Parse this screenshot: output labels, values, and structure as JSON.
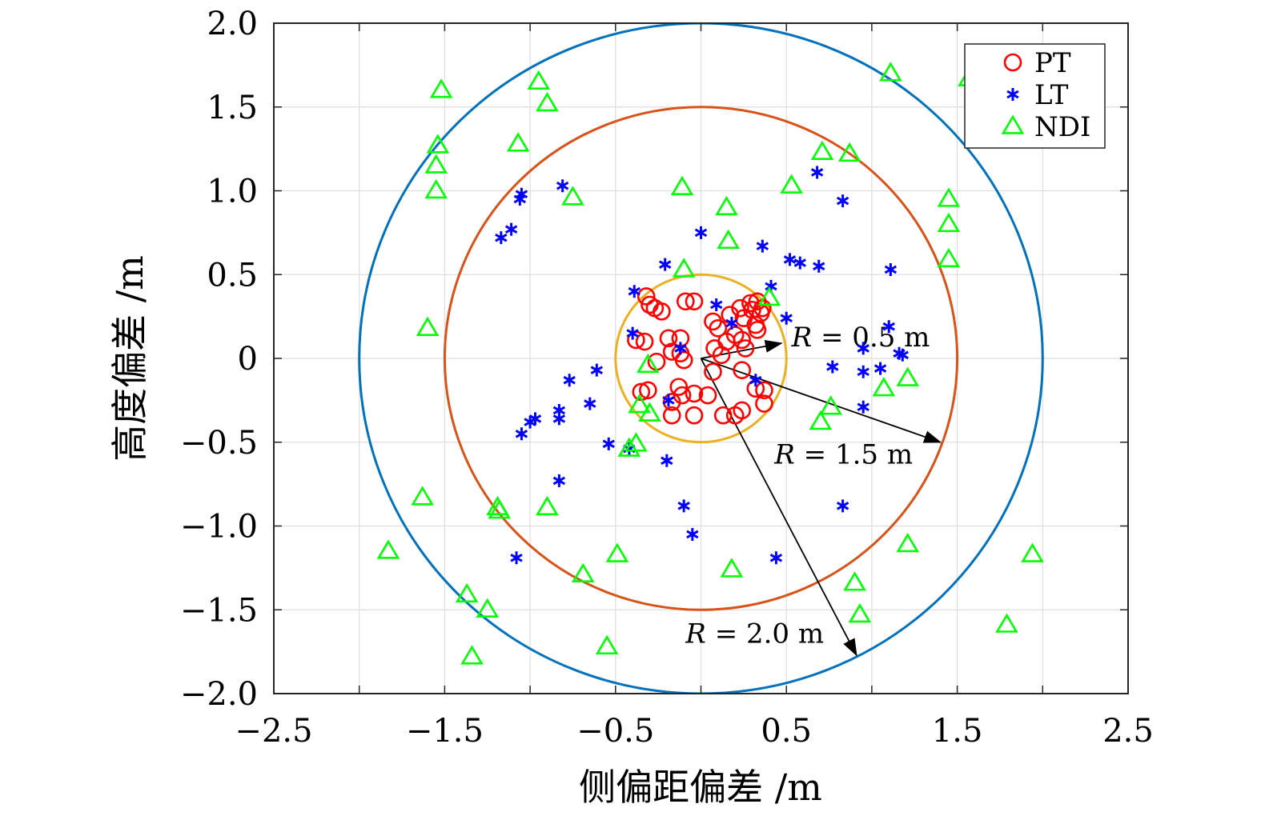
{
  "chart_data": {
    "type": "scatter",
    "xlabel": "侧偏距偏差 /m",
    "ylabel": "高度偏差 /m",
    "xlim": [
      -2.5,
      2.5
    ],
    "ylim": [
      -2.0,
      2.0
    ],
    "xticks": [
      -2.5,
      -1.5,
      -0.5,
      0.5,
      1.5,
      2.5
    ],
    "xtick_labels": [
      "−2.5",
      "−1.5",
      "−0.5",
      "0.5",
      "1.5",
      "2.5"
    ],
    "xgrid": [
      -2.5,
      -2.0,
      -1.5,
      -1.0,
      -0.5,
      0.0,
      0.5,
      1.0,
      1.5,
      2.0,
      2.5
    ],
    "yticks": [
      2.0,
      1.5,
      1.0,
      0.5,
      0.0,
      -0.5,
      -1.0,
      -1.5,
      -2.0
    ],
    "ytick_labels": [
      "2.0",
      "1.5",
      "1.0",
      "0.5",
      "0",
      "−0.5",
      "−1.0",
      "−1.5",
      "−2.0"
    ],
    "grid": true,
    "legend_position": "top-right",
    "circles": [
      {
        "r": 0.5,
        "color": "#EDB120"
      },
      {
        "r": 1.5,
        "color": "#D95319"
      },
      {
        "r": 2.0,
        "color": "#0072BD"
      }
    ],
    "annotations": [
      {
        "text_italic": "R",
        "text_rest": " = 0.5 m",
        "tail": [
          0.0,
          0.0
        ],
        "head": [
          0.47,
          0.09
        ],
        "label_at": [
          0.53,
          0.13
        ]
      },
      {
        "text_italic": "R",
        "text_rest": " = 1.5 m",
        "tail": [
          0.0,
          0.0
        ],
        "head": [
          1.4,
          -0.5
        ],
        "label_at": [
          0.43,
          -0.57
        ]
      },
      {
        "text_italic": "R",
        "text_rest": " = 2.0 m",
        "tail": [
          0.0,
          0.0
        ],
        "head": [
          0.91,
          -1.77
        ],
        "label_at": [
          -0.09,
          -1.64
        ]
      }
    ],
    "series": [
      {
        "name": "PT",
        "marker": "circle",
        "color": "#ff0000",
        "points": [
          [
            -0.32,
            0.37
          ],
          [
            -0.3,
            0.32
          ],
          [
            -0.27,
            0.3
          ],
          [
            -0.23,
            0.28
          ],
          [
            -0.09,
            0.34
          ],
          [
            0.07,
            0.22
          ],
          [
            0.1,
            0.18
          ],
          [
            0.17,
            0.26
          ],
          [
            0.23,
            0.3
          ],
          [
            0.29,
            0.33
          ],
          [
            0.33,
            0.34
          ],
          [
            0.36,
            0.3
          ],
          [
            0.3,
            0.29
          ],
          [
            0.35,
            0.27
          ],
          [
            0.25,
            0.24
          ],
          [
            0.32,
            0.2
          ],
          [
            0.33,
            0.17
          ],
          [
            0.2,
            0.14
          ],
          [
            0.15,
            0.1
          ],
          [
            0.24,
            0.11
          ],
          [
            0.08,
            0.06
          ],
          [
            0.12,
            0.02
          ],
          [
            0.26,
            0.06
          ],
          [
            0.24,
            -0.07
          ],
          [
            -0.38,
            0.11
          ],
          [
            -0.33,
            0.1
          ],
          [
            -0.19,
            0.12
          ],
          [
            -0.12,
            0.12
          ],
          [
            -0.17,
            0.04
          ],
          [
            -0.12,
            0.03
          ],
          [
            -0.1,
            -0.01
          ],
          [
            -0.26,
            -0.02
          ],
          [
            -0.35,
            -0.2
          ],
          [
            -0.31,
            -0.19
          ],
          [
            -0.13,
            -0.17
          ],
          [
            -0.17,
            -0.26
          ],
          [
            -0.11,
            -0.22
          ],
          [
            -0.04,
            -0.21
          ],
          [
            0.04,
            -0.22
          ],
          [
            -0.17,
            -0.34
          ],
          [
            -0.04,
            -0.34
          ],
          [
            0.13,
            -0.34
          ],
          [
            0.2,
            -0.34
          ],
          [
            0.24,
            -0.31
          ],
          [
            0.32,
            -0.18
          ],
          [
            0.37,
            -0.19
          ],
          [
            0.37,
            -0.27
          ],
          [
            0.07,
            -0.08
          ],
          [
            -0.04,
            0.34
          ]
        ]
      },
      {
        "name": "LT",
        "marker": "asterisk",
        "color": "#0000ff",
        "points": [
          [
            -0.81,
            1.03
          ],
          [
            -1.05,
            0.98
          ],
          [
            -1.06,
            0.95
          ],
          [
            -1.11,
            0.77
          ],
          [
            -1.17,
            0.72
          ],
          [
            -0.0,
            0.75
          ],
          [
            -0.21,
            0.56
          ],
          [
            0.36,
            0.67
          ],
          [
            0.52,
            0.59
          ],
          [
            0.58,
            0.57
          ],
          [
            0.69,
            0.55
          ],
          [
            1.11,
            0.53
          ],
          [
            0.68,
            1.11
          ],
          [
            0.83,
            0.94
          ],
          [
            0.41,
            0.43
          ],
          [
            -0.39,
            0.4
          ],
          [
            0.09,
            0.32
          ],
          [
            0.18,
            0.21
          ],
          [
            0.5,
            0.24
          ],
          [
            1.1,
            0.19
          ],
          [
            -0.4,
            0.15
          ],
          [
            1.16,
            0.03
          ],
          [
            1.18,
            0.02
          ],
          [
            0.95,
            0.06
          ],
          [
            -0.12,
            0.06
          ],
          [
            0.77,
            -0.05
          ],
          [
            0.95,
            -0.08
          ],
          [
            1.05,
            -0.06
          ],
          [
            -0.61,
            -0.07
          ],
          [
            -0.77,
            -0.13
          ],
          [
            -0.65,
            -0.27
          ],
          [
            -0.83,
            -0.31
          ],
          [
            -0.83,
            -0.36
          ],
          [
            -0.97,
            -0.36
          ],
          [
            -1.0,
            -0.38
          ],
          [
            -1.05,
            -0.45
          ],
          [
            -0.54,
            -0.51
          ],
          [
            -0.42,
            -0.54
          ],
          [
            -0.2,
            -0.61
          ],
          [
            -0.83,
            -0.73
          ],
          [
            0.32,
            -0.13
          ],
          [
            0.95,
            -0.29
          ],
          [
            -0.19,
            -0.25
          ],
          [
            -0.1,
            -0.88
          ],
          [
            -0.05,
            -1.05
          ],
          [
            0.83,
            -0.88
          ],
          [
            -1.08,
            -1.19
          ],
          [
            0.44,
            -1.19
          ]
        ]
      },
      {
        "name": "NDI",
        "marker": "triangle",
        "color": "#00ff00",
        "points": [
          [
            -1.52,
            1.6
          ],
          [
            -0.95,
            1.65
          ],
          [
            -0.9,
            1.52
          ],
          [
            1.11,
            1.7
          ],
          [
            1.57,
            1.67
          ],
          [
            -1.54,
            1.27
          ],
          [
            -1.55,
            1.15
          ],
          [
            -1.07,
            1.28
          ],
          [
            0.71,
            1.23
          ],
          [
            0.87,
            1.22
          ],
          [
            -1.55,
            1.0
          ],
          [
            -0.75,
            0.96
          ],
          [
            -0.11,
            1.02
          ],
          [
            0.53,
            1.03
          ],
          [
            1.45,
            0.95
          ],
          [
            0.15,
            0.9
          ],
          [
            1.45,
            0.8
          ],
          [
            0.16,
            0.7
          ],
          [
            1.45,
            0.59
          ],
          [
            -0.1,
            0.53
          ],
          [
            0.4,
            0.36
          ],
          [
            -1.6,
            0.18
          ],
          [
            -0.31,
            -0.04
          ],
          [
            1.07,
            -0.18
          ],
          [
            1.21,
            -0.12
          ],
          [
            0.7,
            -0.38
          ],
          [
            0.76,
            -0.29
          ],
          [
            -0.36,
            -0.28
          ],
          [
            -0.3,
            -0.33
          ],
          [
            -0.38,
            -0.51
          ],
          [
            -0.42,
            -0.54
          ],
          [
            -1.63,
            -0.83
          ],
          [
            -1.19,
            -0.89
          ],
          [
            -1.18,
            -0.91
          ],
          [
            -0.9,
            -0.89
          ],
          [
            -1.83,
            -1.15
          ],
          [
            -0.49,
            -1.17
          ],
          [
            1.21,
            -1.11
          ],
          [
            1.94,
            -1.17
          ],
          [
            -0.69,
            -1.29
          ],
          [
            0.18,
            -1.26
          ],
          [
            0.9,
            -1.34
          ],
          [
            -1.37,
            -1.41
          ],
          [
            -1.25,
            -1.5
          ],
          [
            0.93,
            -1.53
          ],
          [
            1.79,
            -1.59
          ],
          [
            -1.34,
            -1.78
          ],
          [
            -0.55,
            -1.72
          ]
        ]
      }
    ]
  }
}
